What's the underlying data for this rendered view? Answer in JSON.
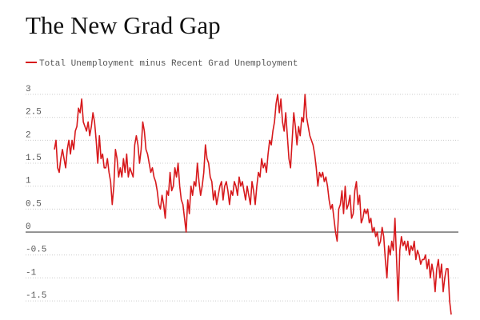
{
  "chart_data": {
    "type": "line",
    "title": "The New Grad Gap",
    "series": [
      {
        "name": "Total Unemployment minus Recent Grad Unemployment",
        "color": "#d7191c",
        "values": [
          1.8,
          2.0,
          1.4,
          1.3,
          1.6,
          1.8,
          1.6,
          1.4,
          1.8,
          2.0,
          1.7,
          2.0,
          1.8,
          2.2,
          2.3,
          2.7,
          2.6,
          2.9,
          2.4,
          2.3,
          2.2,
          2.4,
          2.1,
          2.3,
          2.6,
          2.4,
          2.0,
          1.5,
          2.1,
          1.6,
          1.7,
          1.4,
          1.4,
          1.6,
          1.3,
          1.1,
          0.6,
          1.0,
          1.8,
          1.6,
          1.2,
          1.4,
          1.2,
          1.6,
          1.3,
          1.7,
          1.2,
          1.4,
          1.3,
          1.2,
          1.9,
          2.1,
          1.9,
          1.5,
          1.8,
          2.4,
          2.2,
          1.8,
          1.7,
          1.5,
          1.3,
          1.4,
          1.2,
          1.1,
          0.9,
          0.6,
          0.5,
          0.8,
          0.6,
          0.3,
          0.9,
          0.8,
          1.3,
          0.9,
          1.0,
          1.4,
          1.2,
          1.5,
          1.0,
          0.7,
          0.6,
          0.3,
          0.0,
          0.7,
          0.4,
          1.0,
          0.8,
          1.1,
          1.0,
          1.5,
          1.1,
          0.8,
          1.0,
          1.3,
          1.9,
          1.6,
          1.5,
          1.2,
          1.1,
          0.7,
          0.9,
          0.6,
          0.8,
          1.0,
          1.1,
          0.7,
          1.0,
          1.1,
          0.9,
          0.6,
          0.9,
          0.8,
          1.1,
          1.0,
          0.8,
          1.2,
          1.0,
          1.1,
          0.9,
          0.7,
          1.0,
          0.8,
          0.6,
          1.1,
          0.9,
          0.6,
          1.0,
          1.3,
          1.2,
          1.6,
          1.4,
          1.5,
          1.3,
          1.7,
          2.0,
          1.9,
          2.2,
          2.4,
          2.8,
          3.0,
          2.6,
          2.9,
          2.4,
          2.2,
          2.6,
          2.1,
          1.6,
          1.4,
          2.0,
          2.6,
          2.3,
          1.9,
          2.3,
          2.1,
          2.5,
          2.4,
          3.0,
          2.5,
          2.3,
          2.1,
          2.0,
          1.9,
          1.7,
          1.4,
          1.0,
          1.3,
          1.2,
          1.3,
          1.1,
          1.2,
          1.0,
          0.7,
          0.5,
          0.6,
          0.3,
          0.0,
          -0.2,
          0.5,
          0.6,
          0.9,
          0.4,
          1.0,
          0.5,
          0.6,
          0.8,
          0.3,
          0.4,
          0.9,
          1.1,
          0.6,
          0.8,
          0.2,
          0.3,
          0.5,
          0.4,
          0.5,
          0.2,
          0.3,
          0.0,
          0.1,
          -0.1,
          0.0,
          -0.3,
          -0.2,
          0.1,
          -0.1,
          -0.6,
          -1.0,
          -0.3,
          -0.5,
          -0.2,
          -0.4,
          0.3,
          -0.6,
          -1.5,
          -0.4,
          -0.1,
          -0.3,
          -0.2,
          -0.4,
          -0.2,
          -0.5,
          -0.3,
          -0.4,
          -0.2,
          -0.6,
          -0.4,
          -0.5,
          -0.7,
          -0.6,
          -0.6,
          -0.5,
          -0.8,
          -0.6,
          -1.0,
          -0.7,
          -0.9,
          -1.3,
          -0.8,
          -0.6,
          -1.0,
          -0.7,
          -1.3,
          -1.0,
          -0.8,
          -0.8,
          -1.5,
          -1.8
        ]
      }
    ],
    "ylim": [
      -1.9,
      3.1
    ],
    "yticks": [
      -1.5,
      -1,
      -0.5,
      0,
      0.5,
      1,
      1.5,
      2,
      2.5,
      3
    ],
    "grid": true
  }
}
